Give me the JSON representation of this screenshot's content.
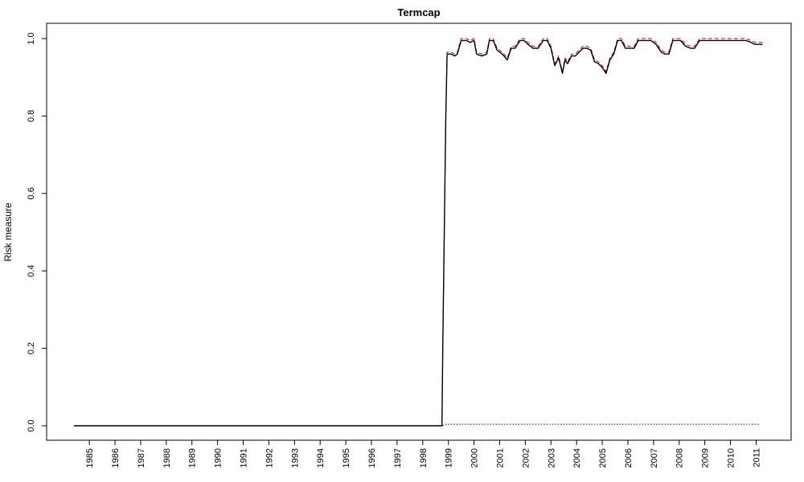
{
  "chart_data": {
    "type": "line",
    "title": "Termcap",
    "xlabel": "",
    "ylabel": "Risk measure",
    "xlim": [
      1984.4,
      2011.3
    ],
    "ylim": [
      0,
      1
    ],
    "y_ticks": [
      0.0,
      0.2,
      0.4,
      0.6,
      0.8,
      1.0
    ],
    "y_tick_labels": [
      "0.0",
      "0.2",
      "0.4",
      "0.6",
      "0.8",
      "1.0"
    ],
    "x_ticks": [
      1985,
      1986,
      1987,
      1988,
      1989,
      1990,
      1991,
      1992,
      1993,
      1994,
      1995,
      1996,
      1997,
      1998,
      1999,
      2000,
      2001,
      2002,
      2003,
      2004,
      2005,
      2006,
      2007,
      2008,
      2009,
      2010,
      2011
    ],
    "x_tick_labels": [
      "1985",
      "1986",
      "1987",
      "1988",
      "1989",
      "1990",
      "1991",
      "1992",
      "1993",
      "1994",
      "1995",
      "1996",
      "1997",
      "1998",
      "1999",
      "2000",
      "2001",
      "2002",
      "2003",
      "2004",
      "2005",
      "2006",
      "2007",
      "2008",
      "2009",
      "2010",
      "2011"
    ],
    "grid": false,
    "legend": "none",
    "series": [
      {
        "style": "solid",
        "color": "#000000",
        "x": [
          1984.4,
          1998.75,
          1998.78,
          1998.85,
          1998.9,
          1998.95,
          1999.1,
          1999.25,
          1999.35,
          1999.5,
          1999.7,
          1999.85,
          2000.0,
          2000.1,
          2000.3,
          2000.5,
          2000.6,
          2000.75,
          2000.9,
          2001.0,
          2001.1,
          2001.3,
          2001.45,
          2001.6,
          2001.8,
          2001.95,
          2002.1,
          2002.3,
          2002.5,
          2002.7,
          2002.85,
          2003.0,
          2003.15,
          2003.3,
          2003.45,
          2003.55,
          2003.65,
          2003.8,
          2003.95,
          2004.1,
          2004.25,
          2004.4,
          2004.55,
          2004.7,
          2004.85,
          2005.0,
          2005.15,
          2005.3,
          2005.45,
          2005.6,
          2005.75,
          2005.9,
          2006.05,
          2006.25,
          2006.4,
          2006.55,
          2006.75,
          2006.9,
          2007.1,
          2007.3,
          2007.45,
          2007.6,
          2007.75,
          2007.9,
          2008.05,
          2008.25,
          2008.45,
          2008.6,
          2008.8,
          2008.95,
          2009.1,
          2009.25,
          2009.45,
          2009.6,
          2009.8,
          2010.0,
          2010.2,
          2010.4,
          2010.6,
          2010.8,
          2010.95,
          2011.1,
          2011.25
        ],
        "y": [
          0.0,
          0.0,
          0.2,
          0.55,
          0.8,
          0.96,
          0.96,
          0.955,
          0.96,
          0.995,
          0.995,
          0.99,
          0.995,
          0.96,
          0.955,
          0.96,
          0.995,
          0.995,
          0.97,
          0.965,
          0.96,
          0.945,
          0.975,
          0.975,
          0.995,
          0.995,
          0.985,
          0.975,
          0.975,
          0.995,
          0.995,
          0.975,
          0.93,
          0.95,
          0.91,
          0.945,
          0.935,
          0.955,
          0.955,
          0.965,
          0.975,
          0.975,
          0.97,
          0.94,
          0.935,
          0.925,
          0.91,
          0.945,
          0.96,
          0.995,
          0.995,
          0.975,
          0.975,
          0.975,
          0.995,
          0.995,
          0.995,
          0.995,
          0.985,
          0.965,
          0.96,
          0.96,
          0.995,
          0.995,
          0.995,
          0.98,
          0.975,
          0.975,
          0.995,
          0.995,
          0.995,
          0.995,
          0.995,
          0.995,
          0.995,
          0.995,
          0.995,
          0.995,
          0.995,
          0.99,
          0.985,
          0.985,
          0.985
        ]
      },
      {
        "style": "dashed",
        "color": "#cc0000",
        "x": [
          1984.4,
          1998.75,
          1998.78,
          1998.85,
          1998.9,
          1998.95,
          1999.1,
          1999.25,
          1999.35,
          1999.5,
          1999.7,
          1999.85,
          2000.0,
          2000.1,
          2000.3,
          2000.5,
          2000.6,
          2000.75,
          2000.9,
          2001.0,
          2001.1,
          2001.3,
          2001.45,
          2001.6,
          2001.8,
          2001.95,
          2002.1,
          2002.3,
          2002.5,
          2002.7,
          2002.85,
          2003.0,
          2003.15,
          2003.3,
          2003.45,
          2003.55,
          2003.65,
          2003.8,
          2003.95,
          2004.1,
          2004.25,
          2004.4,
          2004.55,
          2004.7,
          2004.85,
          2005.0,
          2005.15,
          2005.3,
          2005.45,
          2005.6,
          2005.75,
          2005.9,
          2006.05,
          2006.25,
          2006.4,
          2006.55,
          2006.75,
          2006.9,
          2007.1,
          2007.3,
          2007.45,
          2007.6,
          2007.75,
          2007.9,
          2008.05,
          2008.25,
          2008.45,
          2008.6,
          2008.8,
          2008.95,
          2009.1,
          2009.25,
          2009.45,
          2009.6,
          2009.8,
          2010.0,
          2010.2,
          2010.4,
          2010.6,
          2010.8,
          2010.95,
          2011.1,
          2011.25
        ],
        "y": [
          0.0,
          0.0,
          0.2,
          0.55,
          0.8,
          0.965,
          0.965,
          0.96,
          0.965,
          1.0,
          1.0,
          0.995,
          1.0,
          0.965,
          0.96,
          0.965,
          1.0,
          1.0,
          0.975,
          0.97,
          0.965,
          0.95,
          0.98,
          0.98,
          1.0,
          1.0,
          0.99,
          0.98,
          0.98,
          1.0,
          1.0,
          0.98,
          0.935,
          0.955,
          0.915,
          0.95,
          0.94,
          0.96,
          0.96,
          0.97,
          0.98,
          0.98,
          0.975,
          0.945,
          0.94,
          0.93,
          0.915,
          0.95,
          0.965,
          1.0,
          1.0,
          0.98,
          0.98,
          0.98,
          1.0,
          1.0,
          1.0,
          1.0,
          0.99,
          0.97,
          0.965,
          0.965,
          1.0,
          1.0,
          1.0,
          0.985,
          0.98,
          0.98,
          1.0,
          1.0,
          1.0,
          1.0,
          1.0,
          1.0,
          1.0,
          1.0,
          1.0,
          1.0,
          1.0,
          0.995,
          0.99,
          0.99,
          0.99
        ]
      },
      {
        "style": "dotted",
        "color": "#0000cc",
        "x": [
          1984.4,
          1998.75,
          1998.9,
          2011.1
        ],
        "y": [
          0.0,
          0.0,
          0.004,
          0.004
        ]
      }
    ]
  }
}
